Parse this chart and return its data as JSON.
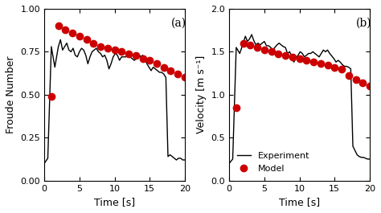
{
  "panel_a": {
    "label": "(a)",
    "xlabel": "Time [s]",
    "ylabel": "Froude Number",
    "xlim": [
      0,
      20
    ],
    "ylim": [
      0.0,
      1.0
    ],
    "yticks": [
      0.0,
      0.25,
      0.5,
      0.75,
      1.0
    ],
    "xticks": [
      0,
      5,
      10,
      15,
      20
    ],
    "exp_x": [
      0,
      0.5,
      1.0,
      1.5,
      2.0,
      2.3,
      2.6,
      2.9,
      3.2,
      3.5,
      3.8,
      4.1,
      4.4,
      4.7,
      5.0,
      5.3,
      5.6,
      5.9,
      6.2,
      6.5,
      6.8,
      7.1,
      7.4,
      7.7,
      8.0,
      8.3,
      8.6,
      8.9,
      9.2,
      9.5,
      9.8,
      10.1,
      10.4,
      10.7,
      11.0,
      11.3,
      11.6,
      11.9,
      12.2,
      12.5,
      12.8,
      13.1,
      13.4,
      13.7,
      14.0,
      14.3,
      14.6,
      14.9,
      15.2,
      15.5,
      15.8,
      16.1,
      16.4,
      16.7,
      17.0,
      17.3,
      17.6,
      17.9,
      18.2,
      18.5,
      18.8,
      19.1,
      19.4,
      19.7,
      20.0
    ],
    "exp_y": [
      0.1,
      0.13,
      0.78,
      0.66,
      0.78,
      0.82,
      0.76,
      0.78,
      0.8,
      0.76,
      0.75,
      0.77,
      0.73,
      0.72,
      0.75,
      0.77,
      0.76,
      0.73,
      0.68,
      0.72,
      0.75,
      0.76,
      0.77,
      0.75,
      0.74,
      0.72,
      0.73,
      0.7,
      0.65,
      0.68,
      0.72,
      0.74,
      0.73,
      0.7,
      0.72,
      0.72,
      0.72,
      0.73,
      0.72,
      0.71,
      0.7,
      0.71,
      0.74,
      0.72,
      0.73,
      0.71,
      0.68,
      0.66,
      0.64,
      0.66,
      0.65,
      0.64,
      0.63,
      0.63,
      0.62,
      0.6,
      0.14,
      0.15,
      0.14,
      0.13,
      0.12,
      0.13,
      0.13,
      0.12,
      0.12
    ],
    "model_x": [
      1.0,
      2.0,
      3.0,
      4.0,
      5.0,
      6.0,
      7.0,
      8.0,
      9.0,
      10.0,
      11.0,
      12.0,
      13.0,
      14.0,
      15.0,
      16.0,
      17.0,
      18.0,
      19.0,
      20.0
    ],
    "model_y": [
      0.49,
      0.9,
      0.88,
      0.86,
      0.84,
      0.82,
      0.8,
      0.78,
      0.77,
      0.76,
      0.75,
      0.74,
      0.73,
      0.71,
      0.7,
      0.68,
      0.66,
      0.64,
      0.62,
      0.6
    ]
  },
  "panel_b": {
    "label": "(b)",
    "xlabel": "Time [s]",
    "ylabel": "Velocity [m s⁻¹]",
    "xlim": [
      0,
      20
    ],
    "ylim": [
      0.0,
      2.0
    ],
    "yticks": [
      0.0,
      0.5,
      1.0,
      1.5,
      2.0
    ],
    "xticks": [
      0,
      5,
      10,
      15,
      20
    ],
    "exp_x": [
      0,
      0.5,
      1.0,
      1.5,
      2.0,
      2.3,
      2.6,
      2.9,
      3.2,
      3.5,
      3.8,
      4.1,
      4.4,
      4.7,
      5.0,
      5.3,
      5.6,
      5.9,
      6.2,
      6.5,
      6.8,
      7.1,
      7.4,
      7.7,
      8.0,
      8.3,
      8.6,
      8.9,
      9.2,
      9.5,
      9.8,
      10.1,
      10.4,
      10.7,
      11.0,
      11.3,
      11.6,
      11.9,
      12.2,
      12.5,
      12.8,
      13.1,
      13.4,
      13.7,
      14.0,
      14.3,
      14.6,
      14.9,
      15.2,
      15.5,
      15.8,
      16.1,
      16.4,
      16.7,
      17.0,
      17.3,
      17.6,
      17.9,
      18.2,
      18.5,
      18.8,
      19.1,
      19.4,
      19.7,
      20.0
    ],
    "exp_y": [
      0.2,
      0.25,
      1.55,
      1.48,
      1.6,
      1.68,
      1.62,
      1.65,
      1.7,
      1.63,
      1.58,
      1.6,
      1.58,
      1.6,
      1.62,
      1.57,
      1.57,
      1.55,
      1.52,
      1.55,
      1.58,
      1.6,
      1.58,
      1.56,
      1.55,
      1.48,
      1.5,
      1.45,
      1.38,
      1.42,
      1.46,
      1.5,
      1.48,
      1.44,
      1.46,
      1.48,
      1.48,
      1.5,
      1.48,
      1.46,
      1.44,
      1.48,
      1.52,
      1.5,
      1.52,
      1.48,
      1.45,
      1.42,
      1.38,
      1.4,
      1.38,
      1.35,
      1.33,
      1.33,
      1.32,
      1.3,
      0.4,
      0.35,
      0.3,
      0.28,
      0.27,
      0.27,
      0.26,
      0.25,
      0.25
    ],
    "model_x": [
      1.0,
      2.0,
      3.0,
      4.0,
      5.0,
      6.0,
      7.0,
      8.0,
      9.0,
      10.0,
      11.0,
      12.0,
      13.0,
      14.0,
      15.0,
      16.0,
      17.0,
      18.0,
      19.0,
      20.0
    ],
    "model_y": [
      0.85,
      1.6,
      1.58,
      1.55,
      1.52,
      1.5,
      1.48,
      1.46,
      1.44,
      1.42,
      1.4,
      1.38,
      1.36,
      1.34,
      1.32,
      1.3,
      1.22,
      1.18,
      1.14,
      1.1
    ],
    "legend_loc": "lower left",
    "legend_experiment": "Experiment",
    "legend_model": "Model"
  },
  "line_color": "#000000",
  "model_color": "#cc0000",
  "model_marker": "o",
  "model_markersize": 6,
  "line_width": 1.0,
  "background_color": "#ffffff"
}
